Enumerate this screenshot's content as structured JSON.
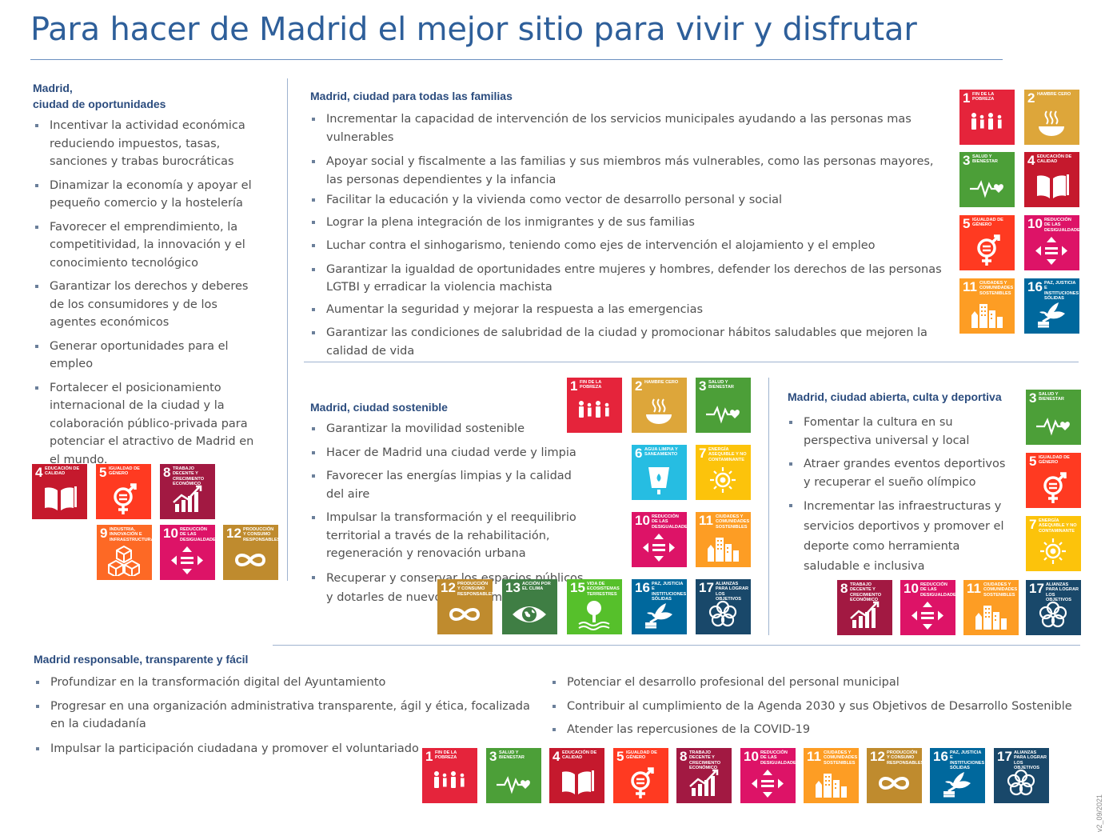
{
  "title": "Para hacer de Madrid el mejor sitio para vivir y disfrutar",
  "version": "v2_09/2021",
  "colors": {
    "title": "#2e5f9a",
    "section_title": "#2b4c7e",
    "rule": "#9fb3cf"
  },
  "sdg_goals": {
    "1": {
      "label": "Fin de la pobreza",
      "color": "#e5243b",
      "icon": "people-icon"
    },
    "2": {
      "label": "Hambre cero",
      "color": "#dda63a",
      "icon": "bowl-icon"
    },
    "3": {
      "label": "Salud y bienestar",
      "color": "#4c9f38",
      "icon": "heartbeat-icon"
    },
    "4": {
      "label": "Educación de calidad",
      "color": "#c5192d",
      "icon": "book-icon"
    },
    "5": {
      "label": "Igualdad de género",
      "color": "#ff3a21",
      "icon": "gender-icon"
    },
    "6": {
      "label": "Agua limpia y saneamiento",
      "color": "#26bde2",
      "icon": "water-icon"
    },
    "7": {
      "label": "Energía asequible y no contaminante",
      "color": "#fcc30b",
      "icon": "sun-icon"
    },
    "8": {
      "label": "Trabajo decente y crecimiento económico",
      "color": "#a21942",
      "icon": "growth-chart-icon"
    },
    "9": {
      "label": "Industria, innovación e infraestructura",
      "color": "#fd6925",
      "icon": "cubes-icon"
    },
    "10": {
      "label": "Reducción de las desigualdades",
      "color": "#dd1367",
      "icon": "equality-icon"
    },
    "11": {
      "label": "Ciudades y comunidades sostenibles",
      "color": "#fd9d24",
      "icon": "buildings-icon"
    },
    "12": {
      "label": "Producción y consumo responsables",
      "color": "#bf8b2e",
      "icon": "infinity-icon"
    },
    "13": {
      "label": "Acción por el clima",
      "color": "#3f7e44",
      "icon": "eye-globe-icon"
    },
    "15": {
      "label": "Vida de ecosistemas terrestres",
      "color": "#56c02b",
      "icon": "tree-icon"
    },
    "16": {
      "label": "Paz, justicia e instituciones sólidas",
      "color": "#00689d",
      "icon": "dove-icon"
    },
    "17": {
      "label": "Alianzas para lograr los objetivos",
      "color": "#19486a",
      "icon": "rings-icon"
    }
  },
  "oportunidades": {
    "title_line1": "Madrid,",
    "title_line2": "ciudad de oportunidades",
    "items": [
      "Incentivar la actividad económica reduciendo impuestos, tasas, sanciones y trabas burocráticas",
      "Dinamizar la economía y apoyar el pequeño comercio y la hostelería",
      "Favorecer el emprendimiento,  la competitividad, la innovación y el conocimiento tecnológico",
      "Garantizar los derechos y deberes de los consumidores y de los agentes económicos",
      "Generar oportunidades para el empleo",
      "Fortalecer el posicionamiento internacional de la ciudad y la colaboración público-privada para potenciar el atractivo de Madrid en el mundo."
    ]
  },
  "familias": {
    "title": "Madrid, ciudad para todas las familias",
    "items": [
      "Incrementar la capacidad de intervención de los servicios municipales ayudando a las personas mas vulnerables",
      "Apoyar social y fiscalmente a las familias y sus miembros más vulnerables, como las personas mayores, las personas dependientes y la infancia",
      "Facilitar la educación y la vivienda como vector de desarrollo personal y social",
      "Lograr la plena integración de los inmigrantes y de sus familias",
      "Luchar contra el sinhogarismo, teniendo como ejes de intervención el alojamiento y el empleo",
      "Garantizar la igualdad de oportunidades entre mujeres y hombres, defender los derechos de  las personas LGTBI y erradicar la violencia machista",
      "Aumentar la seguridad y mejorar la respuesta a las emergencias",
      "Garantizar las condiciones de salubridad de la ciudad y promocionar hábitos saludables que mejoren la calidad de vida"
    ]
  },
  "sostenible": {
    "title": "Madrid, ciudad sostenible",
    "items": [
      "Garantizar la movilidad sostenible",
      "Hacer de Madrid una ciudad verde y limpia",
      "Favorecer las energías limpias y la calidad del aire",
      "Impulsar la transformación y el reequilibrio territorial a través de la rehabilitación, regeneración y renovación urbana",
      "Recuperar y conservar los espacios públicos y dotarles de nuevos equipamientos"
    ]
  },
  "abierta": {
    "title": "Madrid, ciudad abierta, culta y deportiva",
    "items": [
      "Fomentar la cultura en su perspectiva universal y local",
      "Atraer grandes eventos deportivos y recuperar el sueño olímpico",
      "Incrementar las infraestructuras y servicios deportivos y promover el deporte como herramienta saludable e inclusiva"
    ]
  },
  "responsable": {
    "title": "Madrid responsable, transparente y fácil",
    "items_left": [
      "Profundizar en la transformación digital del Ayuntamiento",
      "Progresar en una organización administrativa transparente, ágil y ética, focalizada en la ciudadanía",
      "Impulsar la participación ciudadana y promover el voluntariado"
    ],
    "items_right": [
      "Potenciar el desarrollo profesional del personal municipal",
      "Contribuir al  cumplimiento de la Agenda 2030 y sus Objetivos de Desarrollo Sostenible",
      "Atender las repercusiones de la COVID-19"
    ]
  }
}
